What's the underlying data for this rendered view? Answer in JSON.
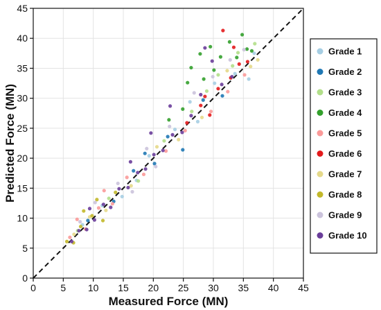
{
  "chart_data": {
    "type": "scatter",
    "title": "",
    "xlabel": "Measured Force (MN)",
    "ylabel": "Predicted Force (MN)",
    "xlim": [
      0,
      45
    ],
    "ylim": [
      0,
      45
    ],
    "xticks": [
      "0",
      "5",
      "10",
      "15",
      "20",
      "25",
      "30",
      "35",
      "40",
      "45"
    ],
    "yticks": [
      "0",
      "5",
      "10",
      "15",
      "20",
      "25",
      "30",
      "35",
      "40",
      "45"
    ],
    "grid": true,
    "legend_position": "right",
    "reference_line": {
      "style": "dashed",
      "from": [
        0,
        0
      ],
      "to": [
        45,
        45
      ]
    },
    "series": [
      {
        "name": "Grade 1",
        "color": "#a6cee3",
        "points": [
          [
            8.2,
            8.9
          ],
          [
            11.5,
            12.1
          ],
          [
            14.8,
            13.6
          ],
          [
            19.3,
            20.4
          ],
          [
            23.6,
            24.8
          ],
          [
            27.4,
            26.1
          ],
          [
            30.2,
            32.5
          ],
          [
            33.6,
            34.1
          ],
          [
            35.9,
            33.2
          ],
          [
            36.8,
            37.5
          ],
          [
            26.1,
            29.4
          ],
          [
            17.2,
            16.3
          ]
        ]
      },
      {
        "name": "Grade 2",
        "color": "#1f78b4",
        "points": [
          [
            9.1,
            9.6
          ],
          [
            13.4,
            12.8
          ],
          [
            16.7,
            17.9
          ],
          [
            20.2,
            19.1
          ],
          [
            24.9,
            21.4
          ],
          [
            28.3,
            29.7
          ],
          [
            31.5,
            30.4
          ],
          [
            22.4,
            23.6
          ],
          [
            18.6,
            20.8
          ]
        ]
      },
      {
        "name": "Grade 3",
        "color": "#b2df8a",
        "points": [
          [
            7.4,
            7.9
          ],
          [
            12.6,
            13.3
          ],
          [
            17.5,
            16.2
          ],
          [
            21.8,
            22.9
          ],
          [
            26.4,
            27.8
          ],
          [
            30.8,
            33.9
          ],
          [
            34.1,
            37.6
          ],
          [
            36.9,
            39.1
          ],
          [
            33.2,
            35.4
          ],
          [
            28.9,
            31.2
          ]
        ]
      },
      {
        "name": "Grade 4",
        "color": "#33a02c",
        "points": [
          [
            26.3,
            35.1
          ],
          [
            27.8,
            37.4
          ],
          [
            29.5,
            38.6
          ],
          [
            31.2,
            36.9
          ],
          [
            32.7,
            39.4
          ],
          [
            34.8,
            40.6
          ],
          [
            35.6,
            38.2
          ],
          [
            30.1,
            34.7
          ],
          [
            24.9,
            28.2
          ],
          [
            22.6,
            26.4
          ],
          [
            28.4,
            33.2
          ],
          [
            33.9,
            36.8
          ],
          [
            36.4,
            37.9
          ],
          [
            25.7,
            32.6
          ]
        ]
      },
      {
        "name": "Grade 5",
        "color": "#fb9a99",
        "points": [
          [
            6.1,
            6.8
          ],
          [
            8.7,
            8.2
          ],
          [
            10.9,
            11.7
          ],
          [
            13.2,
            12.4
          ],
          [
            15.6,
            16.8
          ],
          [
            18.4,
            17.3
          ],
          [
            22.1,
            21.2
          ],
          [
            25.3,
            24.6
          ],
          [
            29.6,
            27.8
          ],
          [
            32.4,
            31.1
          ],
          [
            35.2,
            33.9
          ],
          [
            11.8,
            14.6
          ],
          [
            7.3,
            9.8
          ]
        ]
      },
      {
        "name": "Grade 6",
        "color": "#e31a1c",
        "points": [
          [
            25.6,
            25.9
          ],
          [
            27.9,
            28.8
          ],
          [
            29.4,
            27.2
          ],
          [
            30.8,
            31.6
          ],
          [
            31.6,
            41.3
          ],
          [
            32.9,
            33.4
          ],
          [
            34.3,
            35.7
          ],
          [
            35.7,
            36.1
          ],
          [
            28.6,
            30.3
          ],
          [
            33.4,
            38.5
          ]
        ]
      },
      {
        "name": "Grade 7",
        "color": "#e5d98a",
        "points": [
          [
            6.8,
            7.3
          ],
          [
            9.4,
            10.2
          ],
          [
            12.1,
            11.3
          ],
          [
            16.3,
            15.4
          ],
          [
            20.6,
            21.9
          ],
          [
            24.2,
            23.1
          ],
          [
            28.1,
            26.8
          ],
          [
            32.3,
            34.6
          ],
          [
            36.2,
            35.3
          ],
          [
            37.4,
            36.4
          ]
        ]
      },
      {
        "name": "Grade 8",
        "color": "#c2b82a",
        "points": [
          [
            5.6,
            6.1
          ],
          [
            7.9,
            8.6
          ],
          [
            9.8,
            10.4
          ],
          [
            11.6,
            9.6
          ],
          [
            13.7,
            14.3
          ],
          [
            8.4,
            11.2
          ],
          [
            6.7,
            5.9
          ],
          [
            10.6,
            13.1
          ]
        ]
      },
      {
        "name": "Grade 9",
        "color": "#cbc3dc",
        "points": [
          [
            7.8,
            9.4
          ],
          [
            10.3,
            12.6
          ],
          [
            14.1,
            15.8
          ],
          [
            18.9,
            21.6
          ],
          [
            22.7,
            25.3
          ],
          [
            26.8,
            30.9
          ],
          [
            29.9,
            33.6
          ],
          [
            32.8,
            36.4
          ],
          [
            35.1,
            38.1
          ],
          [
            20.4,
            18.6
          ],
          [
            16.5,
            14.4
          ]
        ]
      },
      {
        "name": "Grade 10",
        "color": "#6a3d9a",
        "points": [
          [
            6.4,
            6.1
          ],
          [
            7.6,
            7.9
          ],
          [
            8.9,
            8.1
          ],
          [
            10.2,
            9.7
          ],
          [
            11.7,
            12.3
          ],
          [
            12.9,
            11.8
          ],
          [
            14.3,
            14.9
          ],
          [
            15.8,
            15.1
          ],
          [
            17.4,
            17.6
          ],
          [
            18.7,
            18.2
          ],
          [
            20.1,
            20.6
          ],
          [
            21.6,
            21.3
          ],
          [
            23.2,
            23.9
          ],
          [
            24.8,
            24.3
          ],
          [
            26.3,
            27.1
          ],
          [
            27.9,
            30.6
          ],
          [
            28.6,
            38.4
          ],
          [
            29.8,
            36.2
          ],
          [
            31.4,
            32.3
          ],
          [
            22.8,
            28.7
          ],
          [
            19.6,
            24.2
          ],
          [
            33.1,
            33.6
          ],
          [
            16.2,
            19.4
          ],
          [
            9.4,
            11.6
          ]
        ]
      }
    ]
  }
}
